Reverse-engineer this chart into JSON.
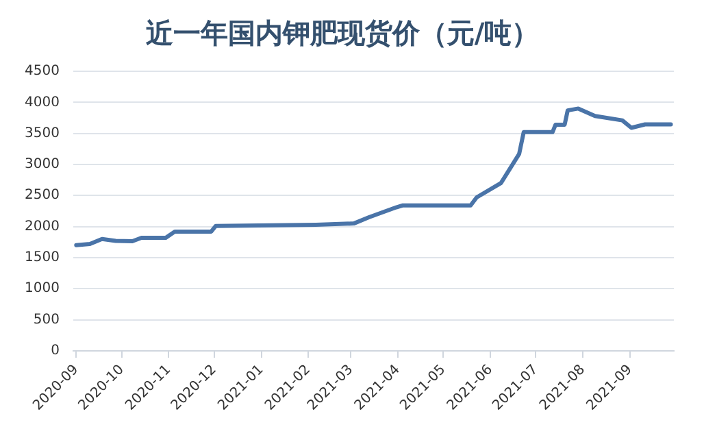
{
  "chart_data": {
    "type": "line",
    "title": "近一年国内钾肥现货价（元/吨）",
    "x": [
      "2020-09-01",
      "2020-09-10",
      "2020-09-18",
      "2020-09-27",
      "2020-10-08",
      "2020-10-14",
      "2020-10-30",
      "2020-11-05",
      "2020-11-29",
      "2020-12-02",
      "2021-02-06",
      "2021-03-03",
      "2021-03-13",
      "2021-03-31",
      "2021-04-04",
      "2021-05-19",
      "2021-05-23",
      "2021-06-08",
      "2021-06-20",
      "2021-06-23",
      "2021-07-12",
      "2021-07-14",
      "2021-07-20",
      "2021-07-22",
      "2021-07-29",
      "2021-08-09",
      "2021-08-27",
      "2021-09-02",
      "2021-09-11",
      "2021-09-28"
    ],
    "series": [
      {
        "color": "#4a74a8",
        "values": [
          1700,
          1720,
          1800,
          1770,
          1765,
          1820,
          1820,
          1920,
          1920,
          2010,
          2030,
          2050,
          2150,
          2310,
          2340,
          2340,
          2470,
          2700,
          3170,
          3520,
          3520,
          3640,
          3640,
          3870,
          3900,
          3780,
          3710,
          3590,
          3645,
          3645
        ]
      }
    ],
    "xlim": [
      "2020-08-30",
      "2021-09-30"
    ],
    "xticks": [
      {
        "value": "2020-09-01",
        "label": "2020-09"
      },
      {
        "value": "2020-10-01",
        "label": "2020-10"
      },
      {
        "value": "2020-11-01",
        "label": "2020-11"
      },
      {
        "value": "2020-12-01",
        "label": "2020-12"
      },
      {
        "value": "2021-01-01",
        "label": "2021-01"
      },
      {
        "value": "2021-02-01",
        "label": "2021-02"
      },
      {
        "value": "2021-03-01",
        "label": "2021-03"
      },
      {
        "value": "2021-04-01",
        "label": "2021-04"
      },
      {
        "value": "2021-05-01",
        "label": "2021-05"
      },
      {
        "value": "2021-06-01",
        "label": "2021-06"
      },
      {
        "value": "2021-07-01",
        "label": "2021-07"
      },
      {
        "value": "2021-08-01",
        "label": "2021-08"
      },
      {
        "value": "2021-09-01",
        "label": "2021-09"
      }
    ],
    "ylim": [
      0,
      4500
    ],
    "yticks": [
      0,
      500,
      1000,
      1500,
      2000,
      2500,
      3000,
      3500,
      4000,
      4500
    ],
    "grid": "y",
    "legend": false,
    "marker": "none",
    "line_style": "solid"
  }
}
